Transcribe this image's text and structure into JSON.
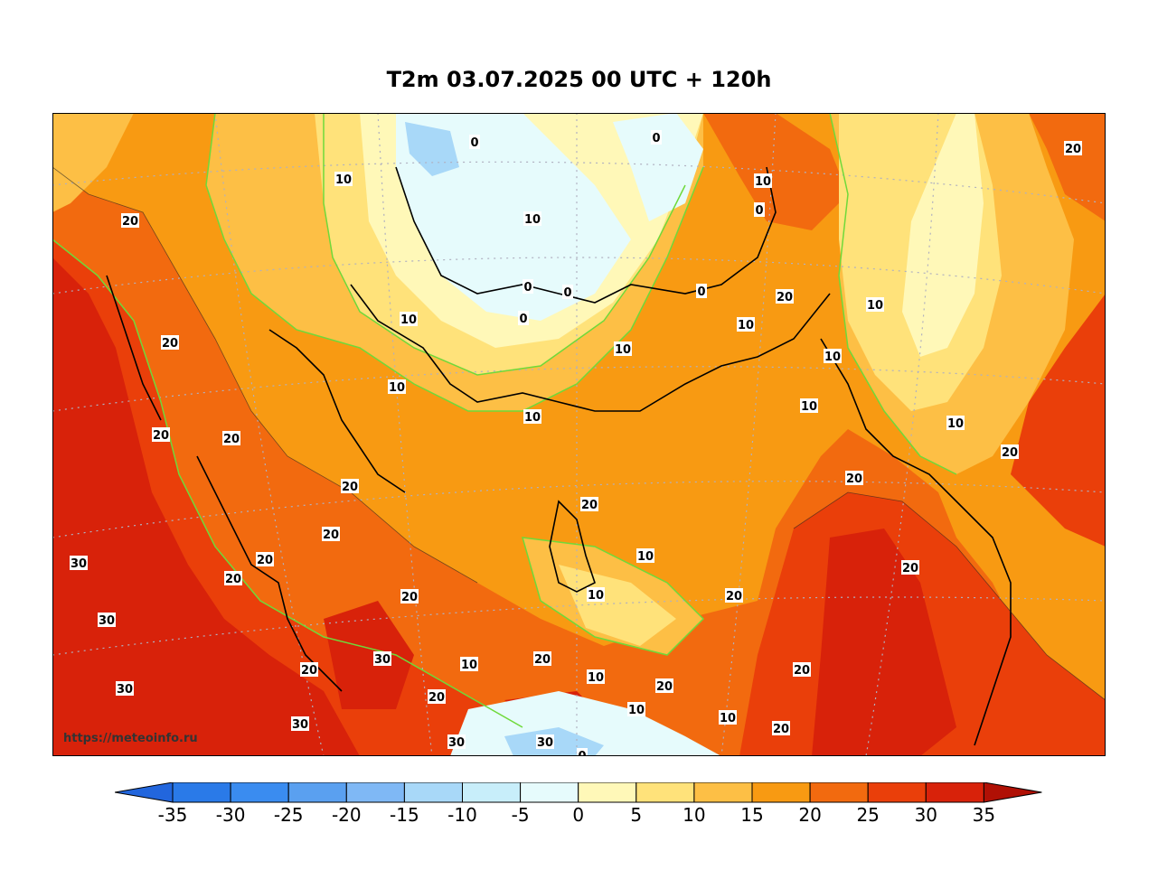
{
  "title": "T2m 03.07.2025 00 UTC + 120h",
  "watermark": "https://meteoinfo.ru",
  "colorbar": {
    "ticks": [
      "-35",
      "-30",
      "-25",
      "-20",
      "-15",
      "-10",
      "-5",
      "0",
      "5",
      "10",
      "15",
      "20",
      "25",
      "30",
      "35"
    ],
    "colors": [
      "#2a7ae8",
      "#3a8cf0",
      "#5aa0f0",
      "#7fb8f5",
      "#a8d8f8",
      "#c8eefa",
      "#e6fbfc",
      "#fff8b8",
      "#ffe27a",
      "#fdbf45",
      "#f89a12",
      "#f26a0f",
      "#ea3f0a",
      "#d8220a",
      "#b01005"
    ],
    "under_color": "#2266dd",
    "over_color": "#b01005"
  },
  "contour_labels": [
    {
      "t": "0",
      "v": 0
    },
    {
      "t": "0",
      "v": 0
    },
    {
      "t": "0",
      "v": 0
    },
    {
      "t": "0",
      "v": 0
    },
    {
      "t": "0",
      "v": 0
    },
    {
      "t": "0",
      "v": 0
    },
    {
      "t": "0",
      "v": 0
    },
    {
      "t": "0",
      "v": 0
    },
    {
      "t": "10",
      "v": 10
    },
    {
      "t": "10",
      "v": 10
    },
    {
      "t": "10",
      "v": 10
    },
    {
      "t": "10",
      "v": 10
    },
    {
      "t": "10",
      "v": 10
    },
    {
      "t": "10",
      "v": 10
    },
    {
      "t": "10",
      "v": 10
    },
    {
      "t": "10",
      "v": 10
    },
    {
      "t": "10",
      "v": 10
    },
    {
      "t": "10",
      "v": 10
    },
    {
      "t": "10",
      "v": 10
    },
    {
      "t": "10",
      "v": 10
    },
    {
      "t": "10",
      "v": 10
    },
    {
      "t": "10",
      "v": 10
    },
    {
      "t": "10",
      "v": 10
    },
    {
      "t": "10",
      "v": 10
    },
    {
      "t": "10",
      "v": 10
    },
    {
      "t": "10",
      "v": 10
    },
    {
      "t": "20",
      "v": 20
    },
    {
      "t": "20",
      "v": 20
    },
    {
      "t": "20",
      "v": 20
    },
    {
      "t": "20",
      "v": 20
    },
    {
      "t": "20",
      "v": 20
    },
    {
      "t": "20",
      "v": 20
    },
    {
      "t": "20",
      "v": 20
    },
    {
      "t": "20",
      "v": 20
    },
    {
      "t": "20",
      "v": 20
    },
    {
      "t": "20",
      "v": 20
    },
    {
      "t": "20",
      "v": 20
    },
    {
      "t": "20",
      "v": 20
    },
    {
      "t": "20",
      "v": 20
    },
    {
      "t": "20",
      "v": 20
    },
    {
      "t": "20",
      "v": 20
    },
    {
      "t": "20",
      "v": 20
    },
    {
      "t": "20",
      "v": 20
    },
    {
      "t": "20",
      "v": 20
    },
    {
      "t": "20",
      "v": 20
    },
    {
      "t": "20",
      "v": 20
    },
    {
      "t": "20",
      "v": 20
    },
    {
      "t": "20",
      "v": 20
    },
    {
      "t": "30",
      "v": 30
    },
    {
      "t": "30",
      "v": 30
    },
    {
      "t": "30",
      "v": 30
    },
    {
      "t": "30",
      "v": 30
    },
    {
      "t": "30",
      "v": 30
    },
    {
      "t": "30",
      "v": 30
    },
    {
      "t": "30",
      "v": 30
    }
  ]
}
